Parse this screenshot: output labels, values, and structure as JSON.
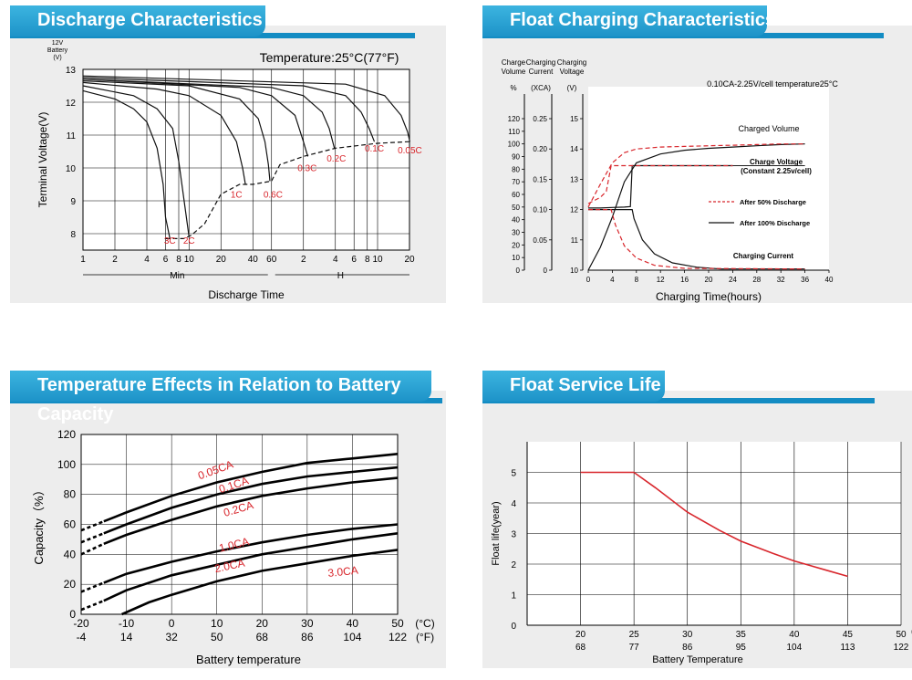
{
  "panels": {
    "discharge": {
      "title": "Discharge Characteristics"
    },
    "float_charging": {
      "title": "Float Charging Characteristics"
    },
    "temperature": {
      "title": "Temperature Effects in Relation to Battery Capacity"
    },
    "service_life": {
      "title": "Float Service Life"
    }
  },
  "chart_data": [
    {
      "id": "discharge",
      "type": "line",
      "title": "Discharge Characteristics",
      "subtitle": "Temperature:25°C(77°F)",
      "ylabel": "Terminal Voltage(V)",
      "ylabel_top": [
        "12V",
        "Battery",
        "(V)"
      ],
      "xlabel": "Discharge Time",
      "x_unit_left": "Min",
      "x_unit_right": "H",
      "ylim": [
        7.5,
        13
      ],
      "yticks": [
        8,
        9,
        10,
        11,
        12,
        13
      ],
      "x_log_scale": true,
      "x_min_ticks": [
        "1",
        "2",
        "4",
        "6",
        "8",
        "10",
        "20",
        "40",
        "60"
      ],
      "x_hour_ticks": [
        "2",
        "4",
        "6",
        "8",
        "10",
        "20"
      ],
      "grid": true,
      "series": [
        {
          "name": "3C",
          "x_min": [
            1,
            2,
            3,
            4,
            5,
            5.7,
            6,
            6.6
          ],
          "y": [
            12.35,
            12.1,
            11.8,
            11.4,
            10.6,
            9.5,
            8.5,
            7.85
          ]
        },
        {
          "name": "2C",
          "x_min": [
            1,
            3,
            5,
            7,
            8,
            9,
            10
          ],
          "y": [
            12.5,
            12.2,
            11.8,
            11.2,
            10.2,
            9.0,
            7.9
          ]
        },
        {
          "name": "1C",
          "x_min": [
            1,
            5,
            10,
            20,
            28,
            32,
            34
          ],
          "y": [
            12.6,
            12.4,
            12.2,
            11.6,
            10.8,
            10.0,
            9.5
          ]
        },
        {
          "name": "0.6C",
          "x_min": [
            1,
            10,
            30,
            45,
            52,
            56,
            58
          ],
          "y": [
            12.65,
            12.5,
            12.1,
            11.5,
            10.8,
            10.1,
            9.6
          ]
        },
        {
          "name": "0.3C",
          "x_min": [
            1,
            30,
            60,
            100,
            120,
            132
          ],
          "y": [
            12.7,
            12.45,
            12.2,
            11.6,
            10.8,
            10.35
          ]
        },
        {
          "name": "0.2C",
          "x_min": [
            1,
            60,
            120,
            180,
            210,
            235
          ],
          "y": [
            12.7,
            12.45,
            12.2,
            11.7,
            11.2,
            10.6
          ]
        },
        {
          "name": "0.1C",
          "x_min": [
            1,
            120,
            300,
            420,
            500,
            560
          ],
          "y": [
            12.75,
            12.5,
            12.2,
            11.7,
            11.2,
            10.8
          ]
        },
        {
          "name": "0.05C",
          "x_min": [
            1,
            300,
            700,
            1000,
            1150,
            1210
          ],
          "y": [
            12.8,
            12.55,
            12.2,
            11.6,
            11.1,
            10.8
          ]
        }
      ],
      "cutoff_line": {
        "x_min": [
          6,
          9,
          10.5,
          14,
          20,
          30,
          40,
          60,
          72,
          120,
          240,
          600,
          1200
        ],
        "y": [
          7.85,
          7.85,
          7.95,
          8.3,
          9.2,
          9.5,
          9.5,
          9.6,
          10.1,
          10.35,
          10.6,
          10.75,
          10.8
        ]
      }
    },
    {
      "id": "float_charging",
      "type": "line",
      "title": "Float Charging Characteristics",
      "annotation": "0.10CA-2.25V/cell  temperature25°C",
      "xlabel": "Charging Time(hours)",
      "xlim": [
        0,
        40
      ],
      "xticks": [
        0,
        4,
        8,
        12,
        16,
        20,
        24,
        28,
        32,
        36,
        40
      ],
      "axes": [
        {
          "label": [
            "Charge",
            "Volume",
            "%"
          ],
          "range": [
            0,
            120
          ],
          "ticks": [
            0,
            10,
            20,
            30,
            40,
            50,
            60,
            70,
            80,
            90,
            100,
            110,
            120
          ]
        },
        {
          "label": [
            "Charging",
            "Current",
            "(XCA)"
          ],
          "range": [
            0,
            0.25
          ],
          "ticks": [
            "0",
            "0.05",
            "0.10",
            "0.15",
            "0.20",
            "0.25"
          ]
        },
        {
          "label": [
            "Charging",
            "Voltage",
            "(V)"
          ],
          "range": [
            10,
            15
          ],
          "ticks": [
            10,
            11,
            12,
            13,
            14,
            15
          ]
        }
      ],
      "legend": [
        "After 50% Discharge",
        "After 100% Discharge"
      ],
      "curve_labels": [
        "Charged Volume",
        "Charge Voltage",
        "(Constant 2.25v/cell)",
        "Charging Current"
      ],
      "series": [
        {
          "name": "Charged Volume (100%)",
          "x": [
            0,
            2,
            4,
            6,
            8,
            12,
            16,
            20,
            24,
            28,
            32,
            36
          ],
          "y": [
            0,
            18,
            42,
            70,
            85,
            92,
            95,
            96.5,
            97.5,
            98.5,
            99.5,
            100
          ]
        },
        {
          "name": "Charged Volume (50%)",
          "x": [
            0,
            2,
            4,
            6,
            8,
            12,
            16,
            20,
            24,
            28,
            32,
            36
          ],
          "y": [
            50,
            68,
            85,
            93,
            96,
            97.5,
            98,
            98.5,
            99,
            99.5,
            100,
            100
          ]
        },
        {
          "name": "Charge Voltage (100%)",
          "x": [
            0,
            2,
            4,
            6,
            7,
            7.3,
            12,
            24
          ],
          "y": [
            12.05,
            12.05,
            12.07,
            12.08,
            12.1,
            13.45,
            13.45,
            13.45
          ]
        },
        {
          "name": "Charge Voltage (50%)",
          "x": [
            0,
            2,
            3,
            3.8,
            5,
            7,
            24
          ],
          "y": [
            12.2,
            12.4,
            12.6,
            13.45,
            13.45,
            13.45,
            13.45
          ]
        },
        {
          "name": "Charging Current (100%)",
          "x": [
            0,
            7.3,
            7.6,
            9,
            11,
            14,
            18,
            22,
            36
          ],
          "y": [
            0.1,
            0.1,
            0.085,
            0.05,
            0.027,
            0.012,
            0.005,
            0.002,
            0.002
          ]
        },
        {
          "name": "Charging Current (50%)",
          "x": [
            0,
            3.8,
            4.5,
            6,
            8,
            11,
            16,
            36
          ],
          "y": [
            0.1,
            0.1,
            0.075,
            0.04,
            0.02,
            0.008,
            0.003,
            0.002
          ]
        }
      ]
    },
    {
      "id": "temperature",
      "type": "line",
      "title": "Temperature Effects in Relation to Battery Capacity",
      "xlabel": "Battery temperature",
      "ylabel": "Capacity（%）",
      "xlim": [
        -20,
        50
      ],
      "ylim": [
        0,
        120
      ],
      "xticks_c": [
        "-20",
        "-10",
        "0",
        "10",
        "20",
        "30",
        "40",
        "50"
      ],
      "xticks_f": [
        "-4",
        "14",
        "32",
        "50",
        "68",
        "86",
        "104",
        "122"
      ],
      "x_unit_c": "(°C)",
      "x_unit_f": "(°F)",
      "yticks": [
        0,
        20,
        40,
        60,
        80,
        100,
        120
      ],
      "grid": true,
      "series": [
        {
          "name": "0.05CA",
          "x": [
            -20,
            -15,
            -10,
            0,
            10,
            20,
            30,
            40,
            50
          ],
          "y": [
            56,
            62,
            68,
            79,
            88,
            95,
            101,
            104,
            107
          ]
        },
        {
          "name": "0.1CA",
          "x": [
            -20,
            -15,
            -10,
            0,
            10,
            20,
            30,
            40,
            50
          ],
          "y": [
            48,
            54,
            60,
            71,
            80,
            87,
            92,
            95,
            98
          ]
        },
        {
          "name": "0.2CA",
          "x": [
            -20,
            -15,
            -10,
            0,
            10,
            20,
            30,
            40,
            50
          ],
          "y": [
            40,
            47,
            53,
            63,
            72,
            79,
            84,
            88,
            91
          ]
        },
        {
          "name": "1.0CA",
          "x": [
            -20,
            -15,
            -10,
            0,
            10,
            20,
            30,
            40,
            50
          ],
          "y": [
            15,
            21,
            27,
            35,
            42,
            48,
            53,
            57,
            60
          ]
        },
        {
          "name": "2.0CA",
          "x": [
            -20,
            -15,
            -10,
            0,
            10,
            20,
            30,
            40,
            50
          ],
          "y": [
            3,
            9,
            16,
            26,
            33,
            40,
            45,
            50,
            54
          ]
        },
        {
          "name": "3.0CA",
          "x": [
            -11,
            -5,
            0,
            10,
            20,
            30,
            40,
            50
          ],
          "y": [
            0,
            8,
            13,
            22,
            29,
            34,
            39,
            43
          ]
        }
      ]
    },
    {
      "id": "service_life",
      "type": "line",
      "title": "Float Service Life",
      "xlabel": "Battery Temperature",
      "ylabel": "Float life(year)",
      "xlim": [
        15,
        50
      ],
      "ylim": [
        0,
        6
      ],
      "xticks_c": [
        "20",
        "25",
        "30",
        "35",
        "40",
        "45",
        "50"
      ],
      "xticks_f": [
        "68",
        "77",
        "86",
        "95",
        "104",
        "113",
        "122"
      ],
      "x_unit_c": "(°C)",
      "x_unit_f": "(°F)",
      "yticks": [
        0,
        1,
        2,
        3,
        4,
        5
      ],
      "grid": true,
      "series": [
        {
          "name": "Float life",
          "color": "#d8262c",
          "x": [
            20,
            25,
            27,
            30,
            33,
            35,
            38,
            40,
            43,
            45
          ],
          "y": [
            5.0,
            5.0,
            4.5,
            3.7,
            3.1,
            2.75,
            2.35,
            2.1,
            1.8,
            1.6
          ]
        }
      ]
    }
  ]
}
